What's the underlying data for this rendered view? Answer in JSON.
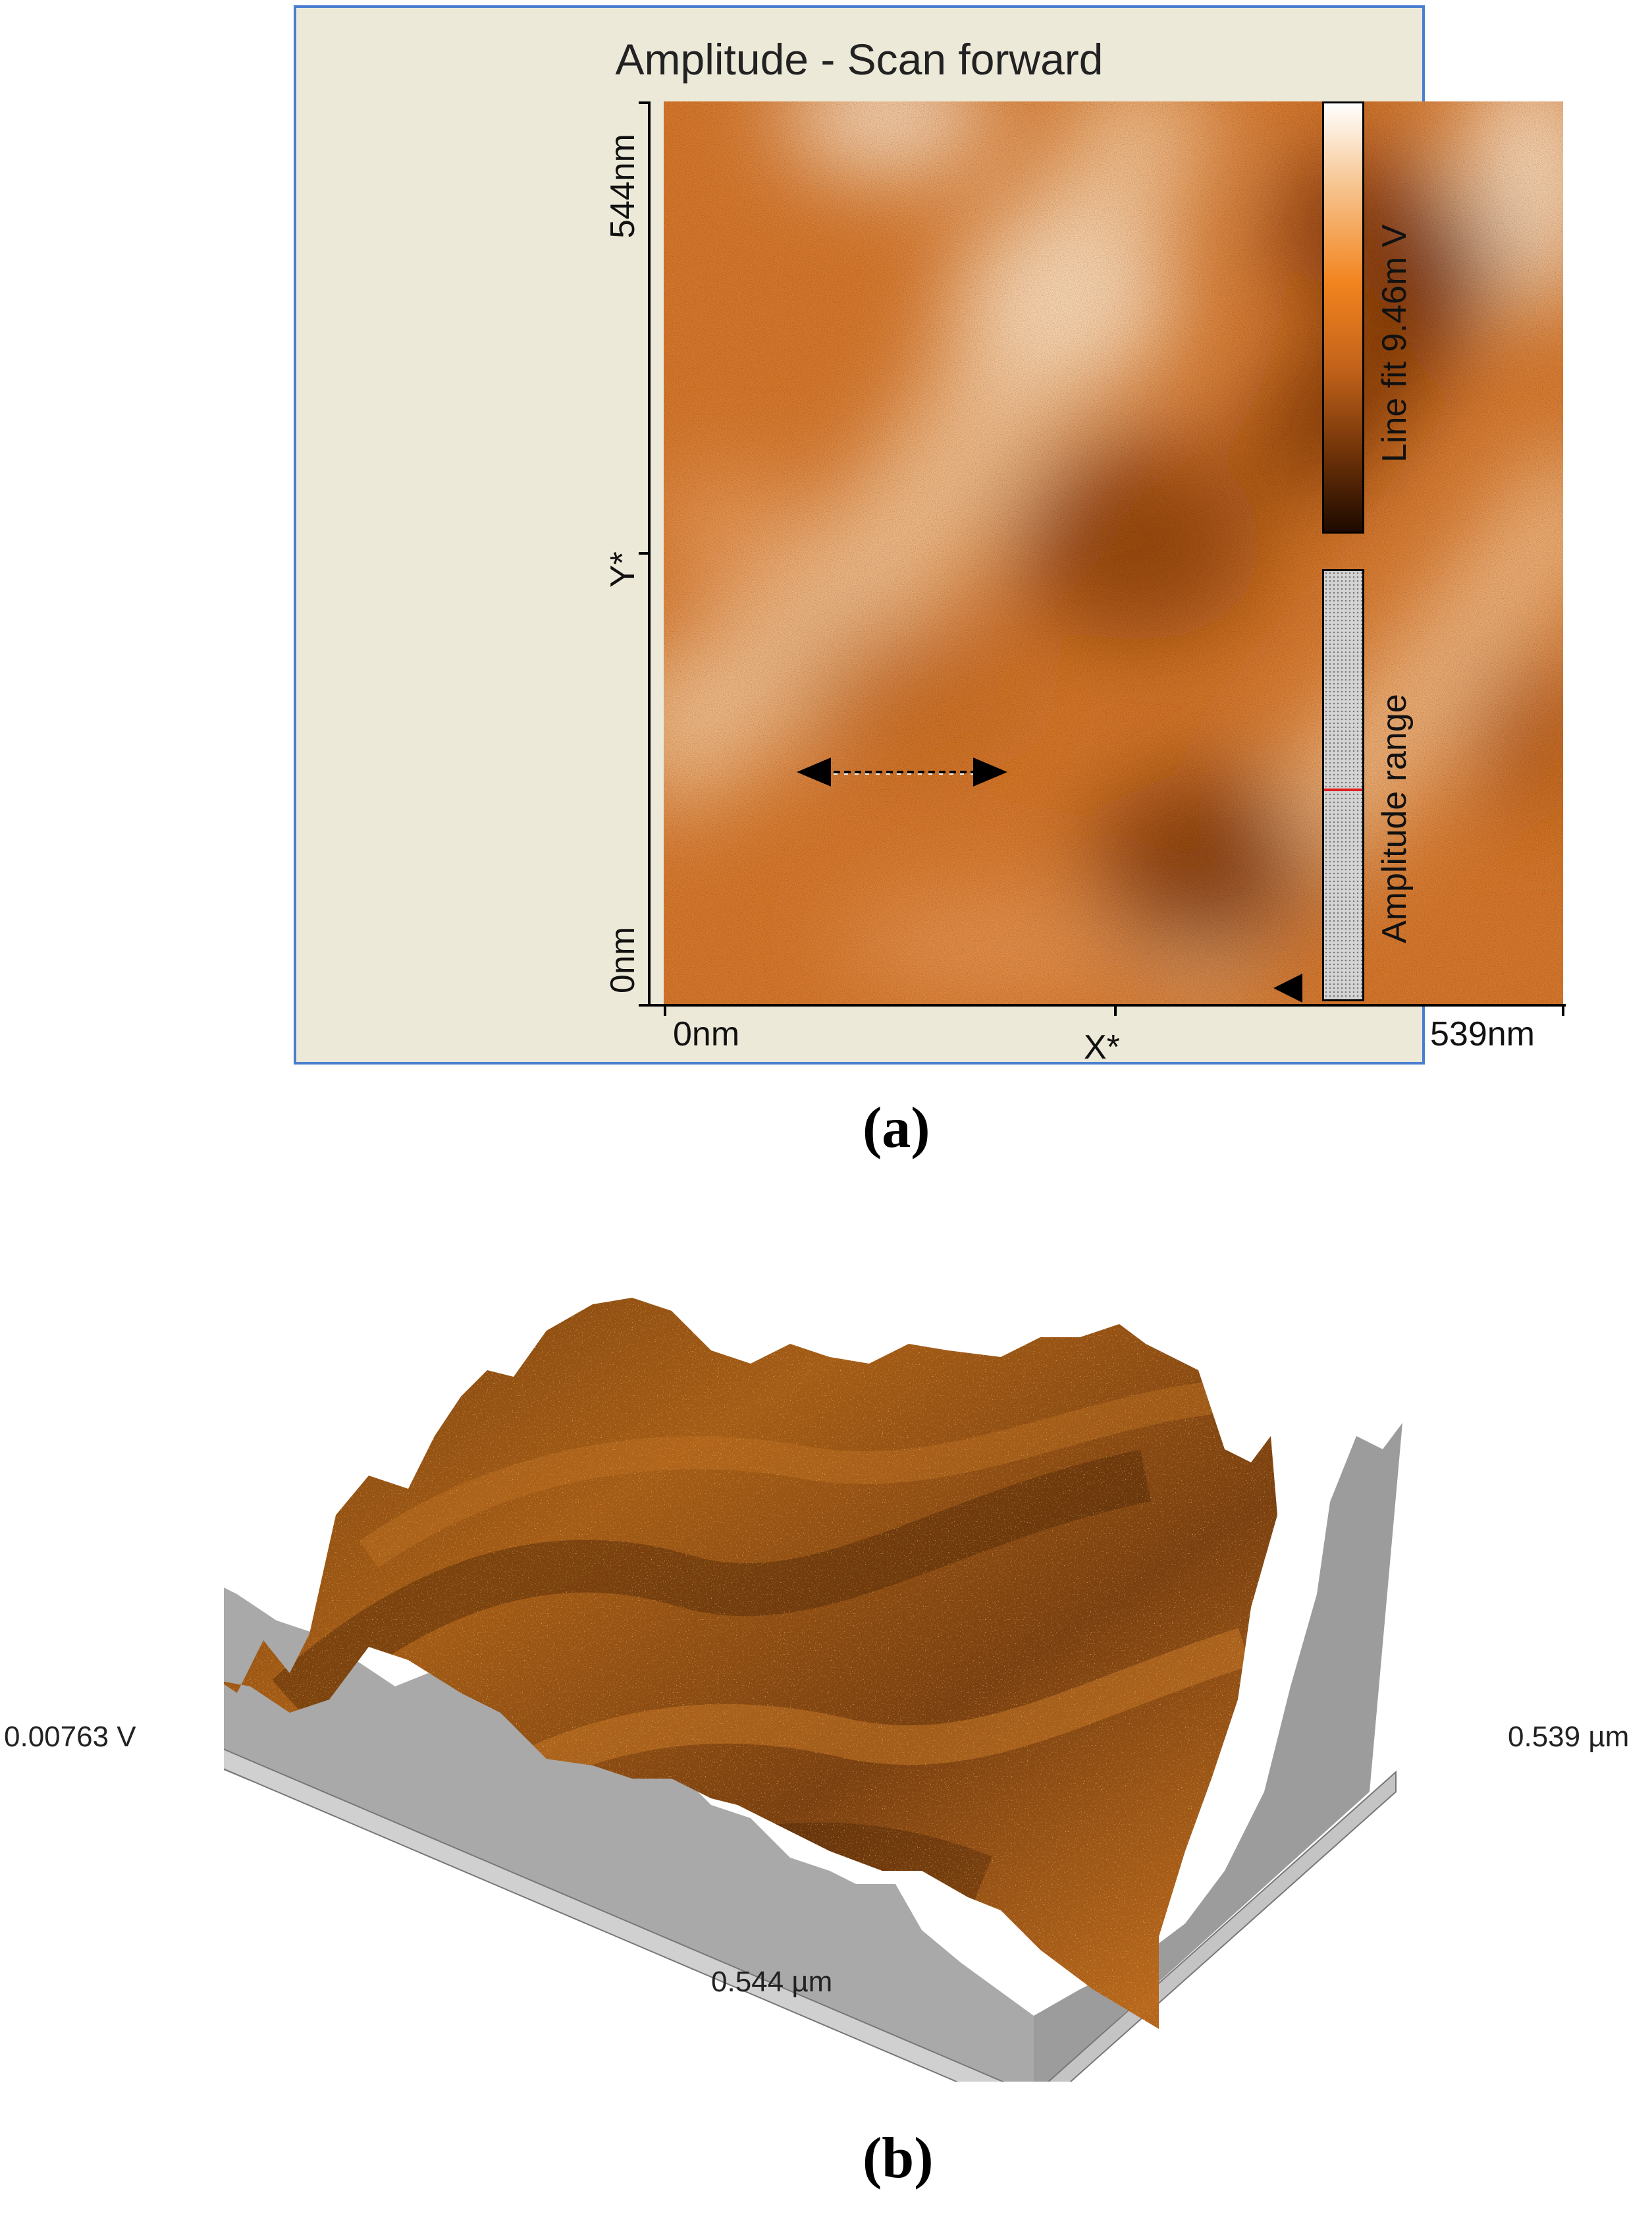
{
  "panel_a": {
    "title": "Amplitude - Scan forward",
    "y_axis": {
      "top_label": "544nm",
      "mid_label": "Y*",
      "bottom_label": "0nm"
    },
    "x_axis": {
      "left_label": "0nm",
      "mid_label": "X*",
      "right_label": "539nm"
    },
    "colorbar_label": "Line fit 9.46m V",
    "range_label": "Amplitude range",
    "colors": {
      "frame": "#ece9d8",
      "border": "#4a7fd0",
      "surface": "#d8782c",
      "marker": "#e02020"
    },
    "letter": "(a)"
  },
  "panel_b": {
    "z_label": "0.00763 V",
    "x_label": "0.544 µm",
    "y_label": "0.539 µm",
    "colors": {
      "surface": "#a55a12",
      "base": "#a8a8a8"
    },
    "letter": "(b)"
  }
}
